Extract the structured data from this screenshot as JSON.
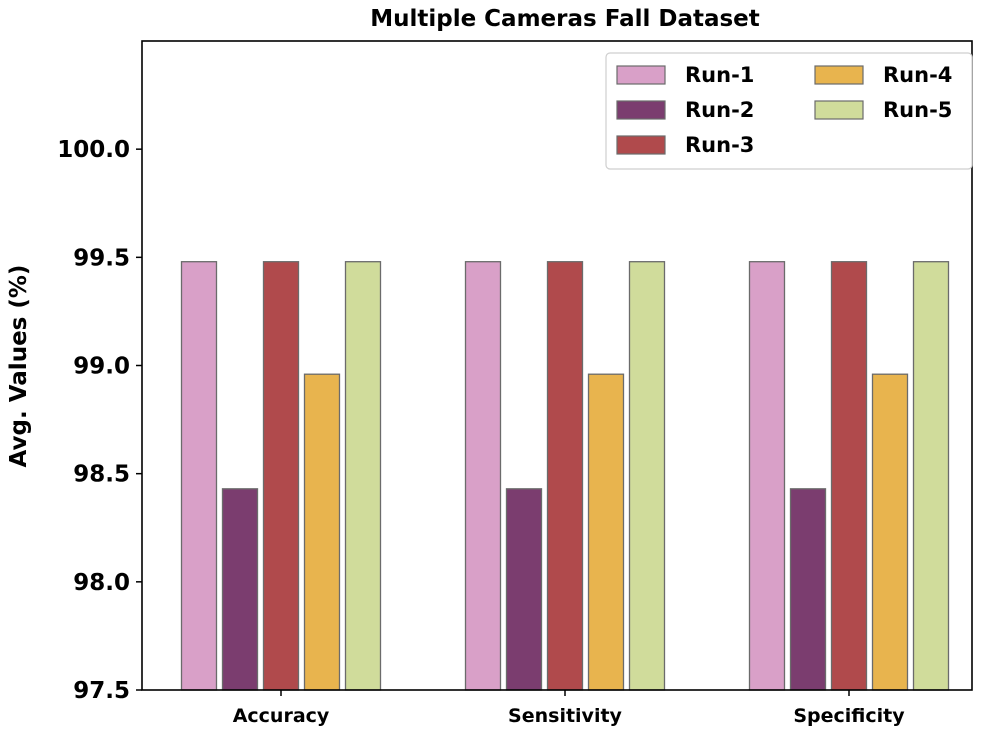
{
  "chart_data": {
    "type": "bar",
    "title": "Multiple Cameras Fall Dataset",
    "xlabel": "",
    "ylabel": "Avg. Values (%)",
    "categories": [
      "Accuracy",
      "Sensitivity",
      "Specificity"
    ],
    "series": [
      {
        "name": "Run-1",
        "values": [
          99.48,
          99.48,
          99.48
        ],
        "color": "#d9a0c8"
      },
      {
        "name": "Run-2",
        "values": [
          98.43,
          98.43,
          98.43
        ],
        "color": "#7b3d6f"
      },
      {
        "name": "Run-3",
        "values": [
          99.48,
          99.48,
          99.48
        ],
        "color": "#b04a4c"
      },
      {
        "name": "Run-4",
        "values": [
          98.96,
          98.96,
          98.96
        ],
        "color": "#e8b44e"
      },
      {
        "name": "Run-5",
        "values": [
          99.48,
          99.48,
          99.48
        ],
        "color": "#d0dc9b"
      }
    ],
    "ylim": [
      97.5,
      100.5
    ],
    "yticks": [
      "97.5",
      "98.0",
      "98.5",
      "99.0",
      "99.5",
      "100.0"
    ],
    "grid": false,
    "legend_position": "top-right",
    "legend_columns": 2
  }
}
